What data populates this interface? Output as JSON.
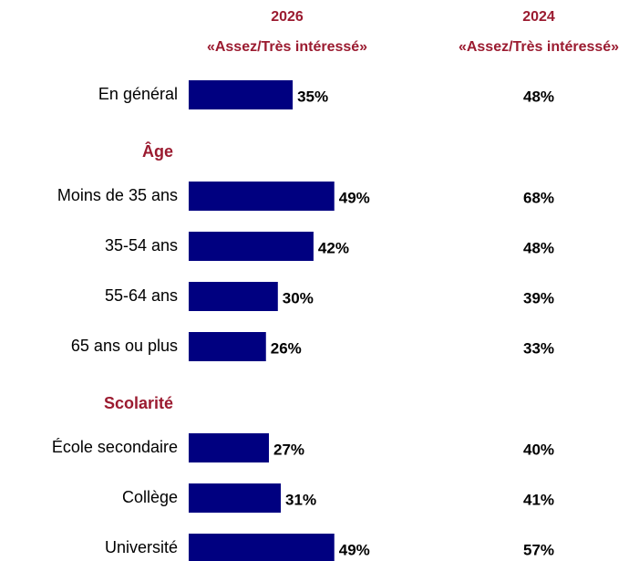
{
  "chart_data": {
    "type": "bar",
    "orientation": "horizontal",
    "color": "#000080",
    "columns": [
      {
        "year": "2026",
        "label": "«Assez/Très intéressé»"
      },
      {
        "year": "2024",
        "label": "«Assez/Très intéressé»"
      }
    ],
    "sections": [
      {
        "categories": [
          "En général"
        ],
        "values": [
          35
        ],
        "value_labels": [
          "35%"
        ],
        "compare": [
          "48%"
        ]
      },
      {
        "title": "Âge",
        "categories": [
          "Moins de 35 ans",
          "35-54 ans",
          "55-64 ans",
          "65 ans ou plus"
        ],
        "values": [
          49,
          42,
          30,
          26
        ],
        "value_labels": [
          "49%",
          "42%",
          "30%",
          "26%"
        ],
        "compare": [
          "68%",
          "48%",
          "39%",
          "33%"
        ]
      },
      {
        "title": "Scolarité",
        "categories": [
          "École secondaire",
          "Collège",
          "Université"
        ],
        "values": [
          27,
          31,
          49
        ],
        "value_labels": [
          "27%",
          "31%",
          "49%"
        ],
        "compare": [
          "40%",
          "41%",
          "57%"
        ]
      }
    ]
  }
}
